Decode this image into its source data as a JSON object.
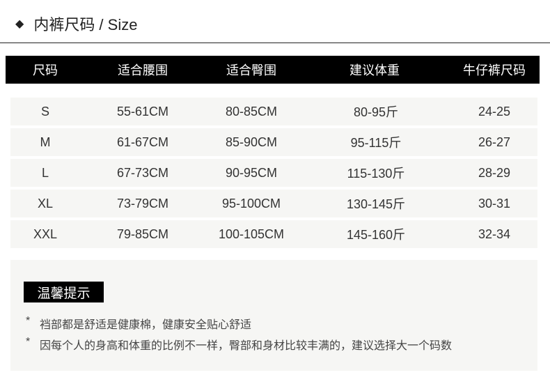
{
  "title": {
    "icon": "diamond-icon",
    "text": "内裤尺码 / Size"
  },
  "table": {
    "headers": [
      "尺码",
      "适合腰围",
      "适合臀围",
      "建议体重",
      "牛仔裤尺码"
    ],
    "rows": [
      [
        "S",
        "55-61CM",
        "80-85CM",
        "80-95斤",
        "24-25"
      ],
      [
        "M",
        "61-67CM",
        "85-90CM",
        "95-115斤",
        "26-27"
      ],
      [
        "L",
        "67-73CM",
        "90-95CM",
        "115-130斤",
        "28-29"
      ],
      [
        "XL",
        "73-79CM",
        "95-100CM",
        "130-145斤",
        "30-31"
      ],
      [
        "XXL",
        "79-85CM",
        "100-105CM",
        "145-160斤",
        "32-34"
      ]
    ]
  },
  "notes": {
    "label": "温馨提示",
    "bullet": "*",
    "items": [
      "裆部都是舒适是健康棉，健康安全贴心舒适",
      "因每个人的身高和体重的比例不一样，臀部和身材比较丰满的，建议选择大一个码数"
    ]
  },
  "colors": {
    "header_bg": "#000000",
    "row_bg": "#f6f6f4"
  }
}
